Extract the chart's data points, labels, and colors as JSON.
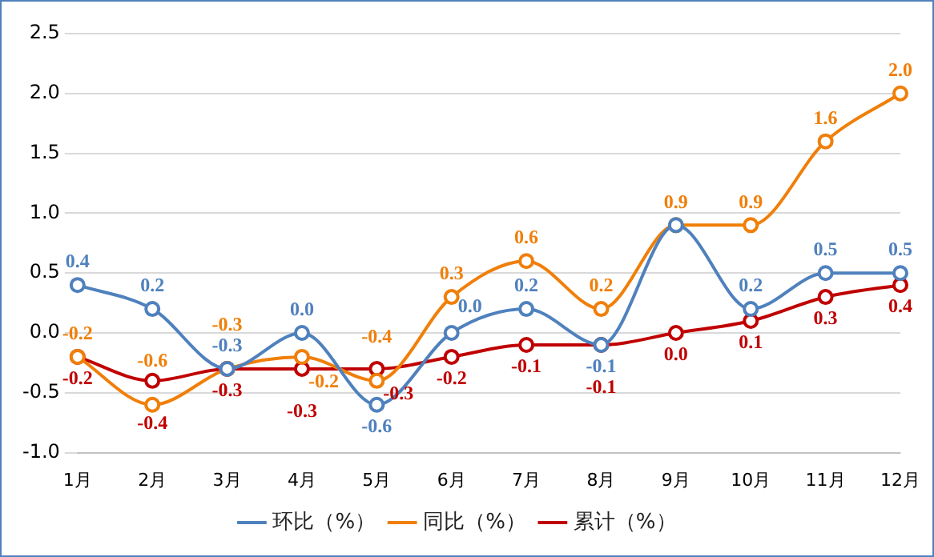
{
  "chart_data": {
    "type": "line",
    "categories": [
      "1月",
      "2月",
      "3月",
      "4月",
      "5月",
      "6月",
      "7月",
      "8月",
      "9月",
      "10月",
      "11月",
      "12月"
    ],
    "series": [
      {
        "name": "环比（%）",
        "color": "#4f81bd",
        "values": [
          0.4,
          0.2,
          -0.3,
          0.0,
          -0.6,
          0.0,
          0.2,
          -0.1,
          0.9,
          0.2,
          0.5,
          0.5
        ],
        "value_labels": [
          "0.4",
          "0.2",
          "-0.3",
          "0.0",
          "-0.6",
          "0.0",
          "0.2",
          "-0.1",
          null,
          "0.2",
          "0.5",
          "0.5"
        ]
      },
      {
        "name": "同比（%）",
        "color": "#f07f09",
        "values": [
          -0.2,
          -0.6,
          -0.3,
          -0.2,
          -0.4,
          0.3,
          0.6,
          0.2,
          0.9,
          0.9,
          1.6,
          2.0
        ],
        "value_labels": [
          "-0.2",
          "-0.6",
          "-0.3",
          "-0.2",
          "-0.4",
          "0.3",
          "0.6",
          "0.2",
          "0.9",
          "0.9",
          "1.6",
          "2.0"
        ]
      },
      {
        "name": "累计（%）",
        "color": "#c00000",
        "values": [
          -0.2,
          -0.4,
          -0.3,
          -0.3,
          -0.3,
          -0.2,
          -0.1,
          -0.1,
          0.0,
          0.1,
          0.3,
          0.4
        ],
        "value_labels": [
          "-0.2",
          "-0.4",
          "-0.3",
          "-0.3",
          "-0.3",
          "-0.2",
          "-0.1",
          "-0.1",
          "0.0",
          "0.1",
          "0.3",
          "0.4"
        ]
      }
    ],
    "ylim": [
      -1.0,
      2.5
    ],
    "yticks": [
      {
        "value": -1,
        "label": "-1.0"
      },
      {
        "value": -0.5,
        "label": "-0.5"
      },
      {
        "value": 0,
        "label": "0.0"
      },
      {
        "value": 0.5,
        "label": "0.5"
      },
      {
        "value": 1,
        "label": "1.0"
      },
      {
        "value": 1.5,
        "label": "1.5"
      },
      {
        "value": 2,
        "label": "2.0"
      },
      {
        "value": 2.5,
        "label": "2.5"
      }
    ],
    "grid": "y",
    "legend": "bottom",
    "marker": "circle",
    "line_style": "solid"
  }
}
